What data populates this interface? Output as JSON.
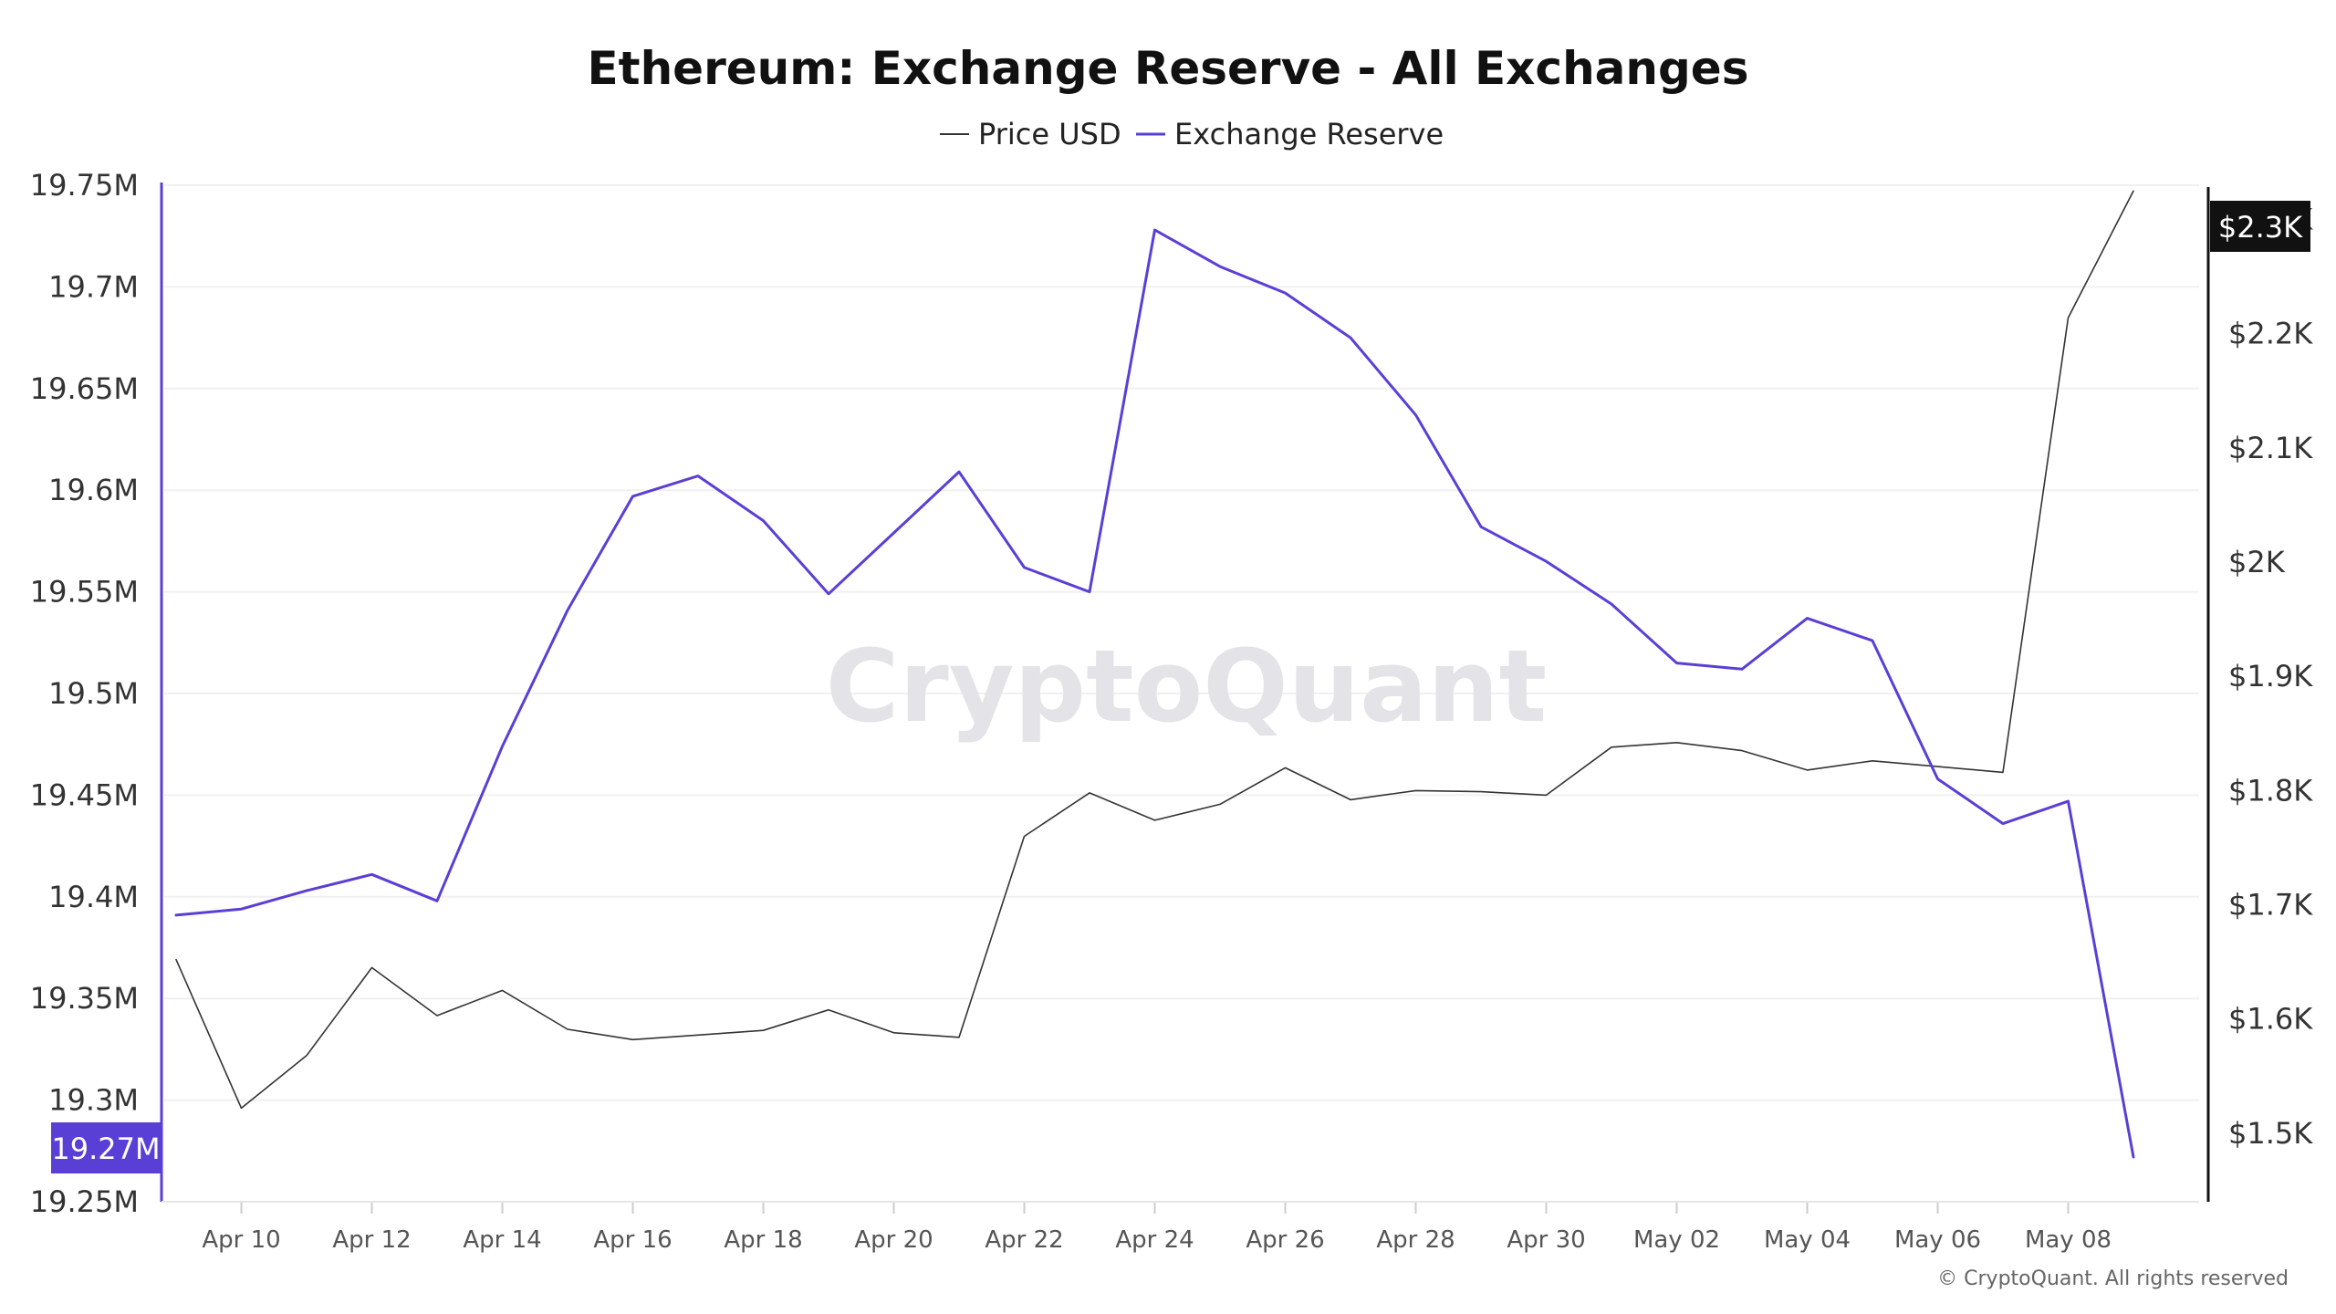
{
  "title": "Ethereum: Exchange Reserve - All Exchanges",
  "legend": [
    {
      "label": "Price USD",
      "color": "#333333"
    },
    {
      "label": "Exchange Reserve",
      "color": "#5a3fd6"
    }
  ],
  "watermark": "CryptoQuant",
  "copyright": "© CryptoQuant. All rights reserved",
  "badges": {
    "left": "19.27M",
    "right": "$2.3K",
    "left_color": "#5a3fd6",
    "right_color": "#111111"
  },
  "chart_data": {
    "type": "line",
    "x_tick_labels": [
      "Apr 10",
      "Apr 12",
      "Apr 14",
      "Apr 16",
      "Apr 18",
      "Apr 20",
      "Apr 22",
      "Apr 24",
      "Apr 26",
      "Apr 28",
      "Apr 30",
      "May 02",
      "May 04",
      "May 06",
      "May 08"
    ],
    "x": [
      "Apr 09",
      "Apr 10",
      "Apr 11",
      "Apr 12",
      "Apr 13",
      "Apr 14",
      "Apr 15",
      "Apr 16",
      "Apr 17",
      "Apr 18",
      "Apr 19",
      "Apr 20",
      "Apr 21",
      "Apr 22",
      "Apr 23",
      "Apr 24",
      "Apr 25",
      "Apr 26",
      "Apr 27",
      "Apr 28",
      "Apr 29",
      "Apr 30",
      "May 01",
      "May 02",
      "May 03",
      "May 04",
      "May 05",
      "May 06",
      "May 07",
      "May 08",
      "May 09"
    ],
    "left_axis": {
      "ylim": [
        19.25,
        19.75
      ],
      "ticks": [
        19.25,
        19.3,
        19.35,
        19.4,
        19.45,
        19.5,
        19.55,
        19.6,
        19.65,
        19.7,
        19.75
      ],
      "tick_labels": [
        "19.25M",
        "19.3M",
        "19.35M",
        "19.4M",
        "19.45M",
        "19.5M",
        "19.55M",
        "19.6M",
        "19.65M",
        "19.7M",
        "19.75M"
      ],
      "color": "#5a3fd6"
    },
    "right_axis": {
      "ylim": [
        1440,
        2330
      ],
      "ticks": [
        1500,
        1600,
        1700,
        1800,
        1900,
        2000,
        2100,
        2200,
        2300
      ],
      "tick_labels": [
        "$1.5K",
        "$1.6K",
        "$1.7K",
        "$1.8K",
        "$1.9K",
        "$2K",
        "$2.1K",
        "$2.2K",
        "$2.3K"
      ],
      "color": "#111111"
    },
    "series": [
      {
        "name": "Exchange Reserve",
        "axis": "left",
        "color": "#5a3fd6",
        "values": [
          19.391,
          19.394,
          19.403,
          19.411,
          19.398,
          19.474,
          19.541,
          19.597,
          19.607,
          19.585,
          19.549,
          19.579,
          19.609,
          19.562,
          19.55,
          19.728,
          19.71,
          19.697,
          19.675,
          19.637,
          19.582,
          19.565,
          19.544,
          19.515,
          19.512,
          19.537,
          19.526,
          19.458,
          19.436,
          19.447,
          19.272
        ]
      },
      {
        "name": "Price USD",
        "axis": "right",
        "color": "#333333",
        "values": [
          1652,
          1522,
          1568,
          1645,
          1603,
          1625,
          1591,
          1582,
          1586,
          1590,
          1608,
          1588,
          1584,
          1760,
          1798,
          1774,
          1788,
          1820,
          1792,
          1800,
          1799,
          1796,
          1838,
          1842,
          1835,
          1818,
          1826,
          1821,
          1816,
          2214,
          2325
        ]
      }
    ]
  }
}
